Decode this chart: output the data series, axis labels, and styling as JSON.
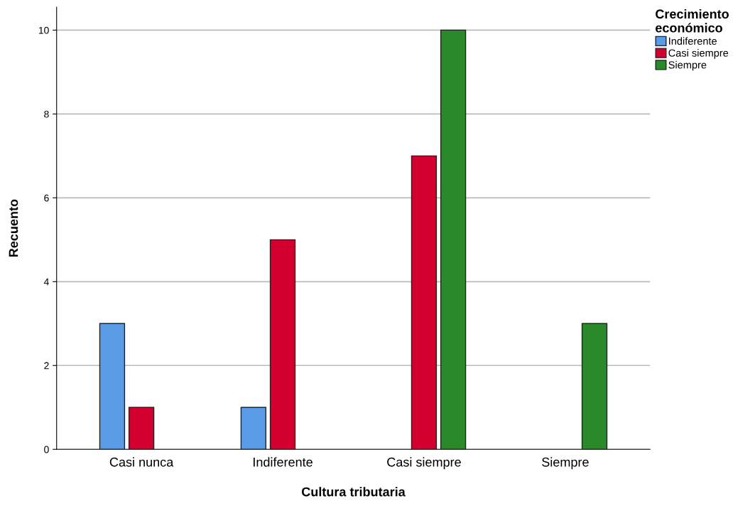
{
  "chart_data": {
    "type": "bar",
    "xlabel": "Cultura tributaria",
    "ylabel": "Recuento",
    "categories": [
      "Casi nunca",
      "Indiferente",
      "Casi siempre",
      "Siempre"
    ],
    "series": [
      {
        "name": "Indiferente",
        "color": "#5a9be6",
        "values": [
          3,
          1,
          0,
          0
        ]
      },
      {
        "name": "Casi siempre",
        "color": "#d3002f",
        "values": [
          1,
          5,
          7,
          0
        ]
      },
      {
        "name": "Siempre",
        "color": "#2a8a2a",
        "values": [
          0,
          0,
          10,
          3
        ]
      }
    ],
    "legend_title": "Crecimiento\neconómico",
    "legend": "top right",
    "ylim": [
      0,
      10.55
    ],
    "yticks": [
      0,
      2,
      4,
      6,
      8,
      10
    ],
    "grid": "y"
  }
}
